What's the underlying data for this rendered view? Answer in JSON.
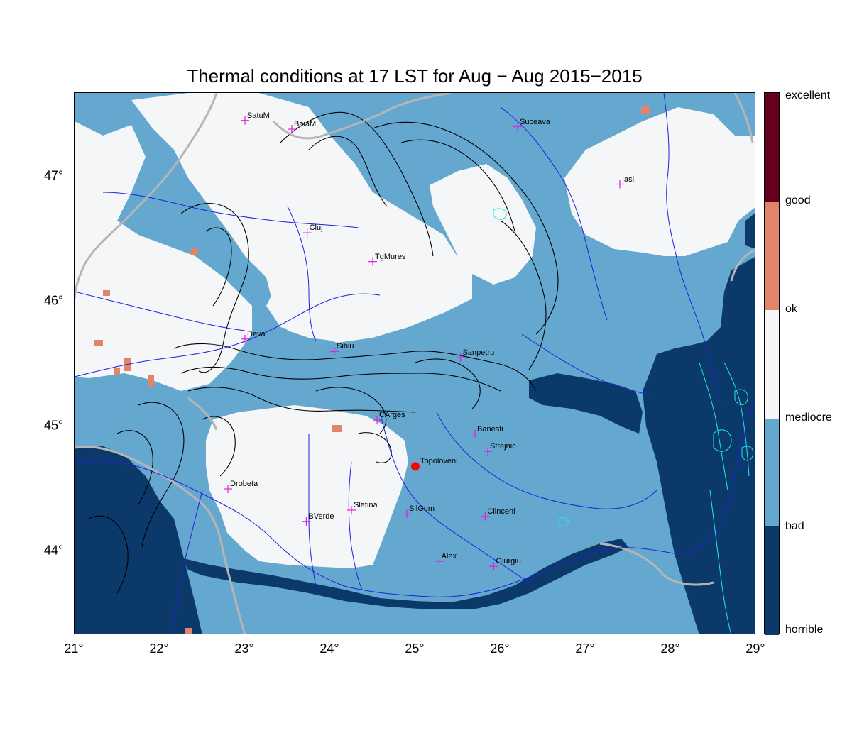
{
  "title": "Thermal conditions at 17 LST for Aug − Aug  2015−2015",
  "axes": {
    "lon_ticks": [
      {
        "value": 21,
        "label": "21°"
      },
      {
        "value": 22,
        "label": "22°"
      },
      {
        "value": 23,
        "label": "23°"
      },
      {
        "value": 24,
        "label": "24°"
      },
      {
        "value": 25,
        "label": "25°"
      },
      {
        "value": 26,
        "label": "26°"
      },
      {
        "value": 27,
        "label": "27°"
      },
      {
        "value": 28,
        "label": "28°"
      },
      {
        "value": 29,
        "label": "29°"
      }
    ],
    "lat_ticks": [
      {
        "value": 44,
        "label": "44°"
      },
      {
        "value": 45,
        "label": "45°"
      },
      {
        "value": 46,
        "label": "46°"
      },
      {
        "value": 47,
        "label": "47°"
      }
    ],
    "lon_range": [
      21,
      29
    ],
    "lat_range": [
      43.33,
      47.67
    ]
  },
  "legend": {
    "labels": [
      "excellent",
      "good",
      "ok",
      "mediocre",
      "bad",
      "horrible"
    ],
    "colors": {
      "excellent": "#67001f",
      "good": "#e0846a",
      "ok": "#f5f6f7",
      "bad": "#64a8cf",
      "horrible": "#0b3a6a"
    }
  },
  "colors": {
    "river": "#1f1fe0",
    "border": "#b5b5b5",
    "contour": "#000000",
    "lake": "#22e6ee",
    "city_marker": "#e020e0",
    "station": "#ff0000"
  },
  "cities": [
    {
      "name": "SatuM",
      "lon": 23.0,
      "lat": 47.45
    },
    {
      "name": "BaiaM",
      "lon": 23.55,
      "lat": 47.38
    },
    {
      "name": "Suceava",
      "lon": 26.2,
      "lat": 47.4
    },
    {
      "name": "Iasi",
      "lon": 27.4,
      "lat": 46.94
    },
    {
      "name": "Cluj",
      "lon": 23.73,
      "lat": 46.55
    },
    {
      "name": "TgMures",
      "lon": 24.5,
      "lat": 46.32
    },
    {
      "name": "Deva",
      "lon": 23.0,
      "lat": 45.7
    },
    {
      "name": "Sibiu",
      "lon": 24.05,
      "lat": 45.6
    },
    {
      "name": "Sanpetru",
      "lon": 25.53,
      "lat": 45.55
    },
    {
      "name": "CArges",
      "lon": 24.55,
      "lat": 45.05
    },
    {
      "name": "Banesti",
      "lon": 25.7,
      "lat": 44.94
    },
    {
      "name": "Strejnic",
      "lon": 25.85,
      "lat": 44.8
    },
    {
      "name": "Drobeta",
      "lon": 22.8,
      "lat": 44.5
    },
    {
      "name": "Slatina",
      "lon": 24.25,
      "lat": 44.33
    },
    {
      "name": "SilGum",
      "lon": 24.9,
      "lat": 44.3
    },
    {
      "name": "Clinceni",
      "lon": 25.82,
      "lat": 44.28
    },
    {
      "name": "BVerde",
      "lon": 23.72,
      "lat": 44.24
    },
    {
      "name": "Alex",
      "lon": 25.28,
      "lat": 43.92
    },
    {
      "name": "Giurgiu",
      "lon": 25.92,
      "lat": 43.88
    }
  ],
  "station": {
    "name": "Topoloveni",
    "lon": 25.0,
    "lat": 44.68
  }
}
